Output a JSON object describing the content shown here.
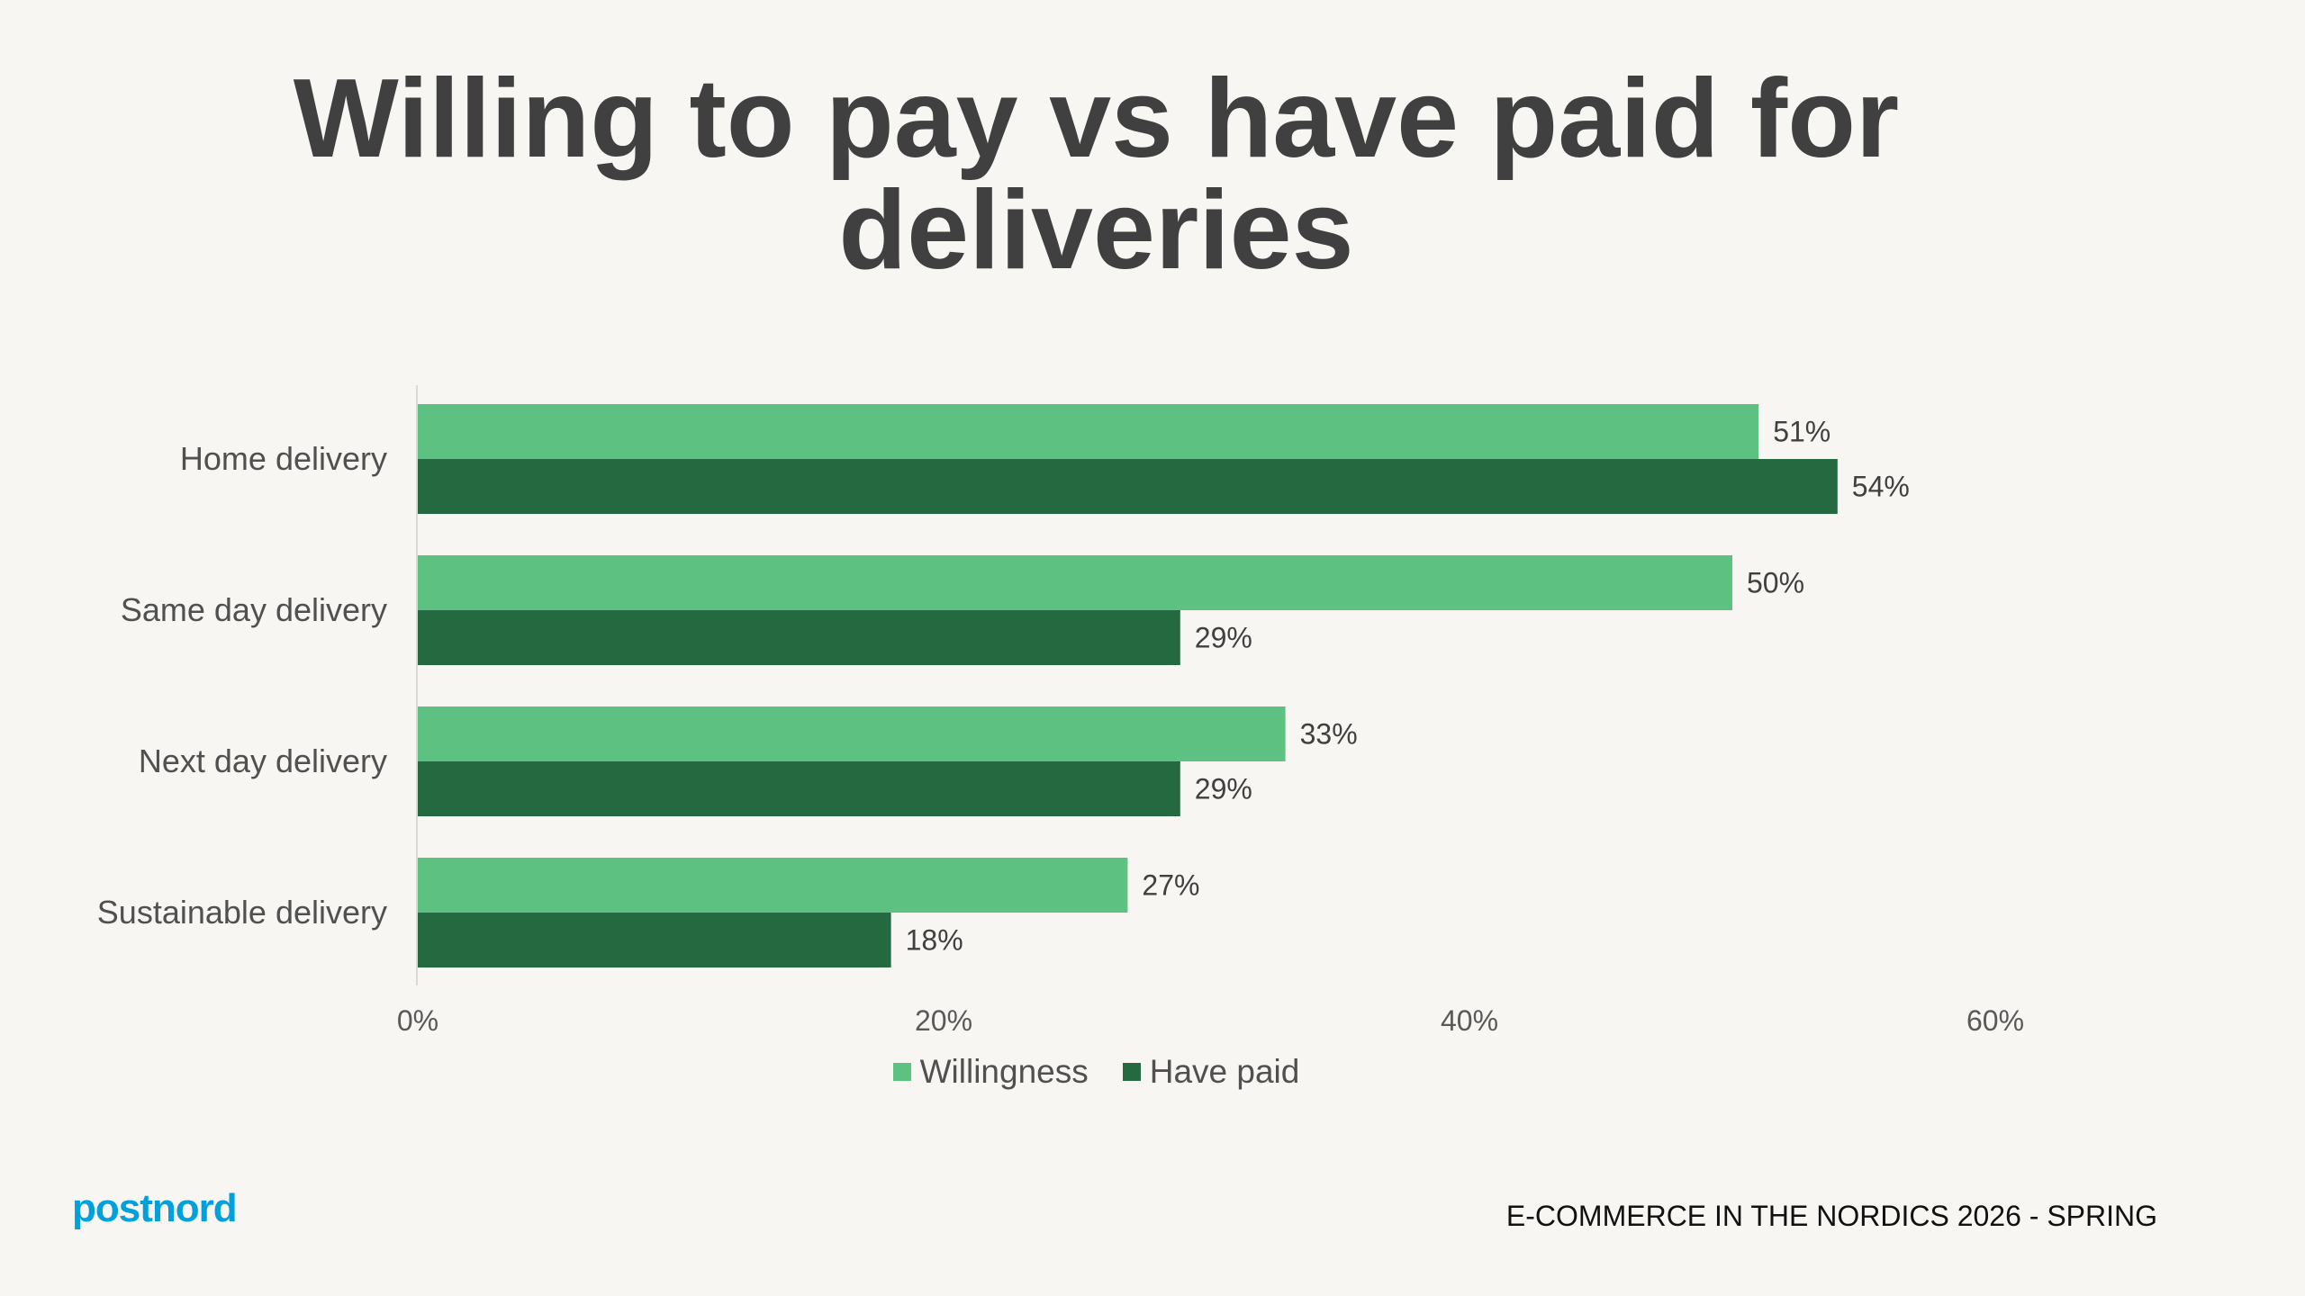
{
  "title_lines": [
    "Willing to pay vs have paid for",
    "deliveries"
  ],
  "footer": "E-COMMERCE IN THE NORDICS 2026 - SPRING",
  "logo_text": "postnord",
  "colors": {
    "willingness": "#5cc181",
    "have_paid": "#24693f",
    "logo": "#00a0dc"
  },
  "chart_data": {
    "type": "bar",
    "orientation": "horizontal",
    "title": "Willing to pay vs have paid for deliveries",
    "categories": [
      "Home delivery",
      "Same day delivery",
      "Next day delivery",
      "Sustainable delivery"
    ],
    "series": [
      {
        "name": "Willingness",
        "values": [
          51,
          50,
          33,
          27
        ]
      },
      {
        "name": "Have paid",
        "values": [
          54,
          29,
          29,
          18
        ]
      }
    ],
    "xlim": [
      0,
      60
    ],
    "xticks": [
      "0%",
      "20%",
      "40%",
      "60%"
    ],
    "xtick_values": [
      0,
      20,
      40,
      60
    ],
    "value_format": "%",
    "grid": false,
    "legend": "bottom"
  }
}
